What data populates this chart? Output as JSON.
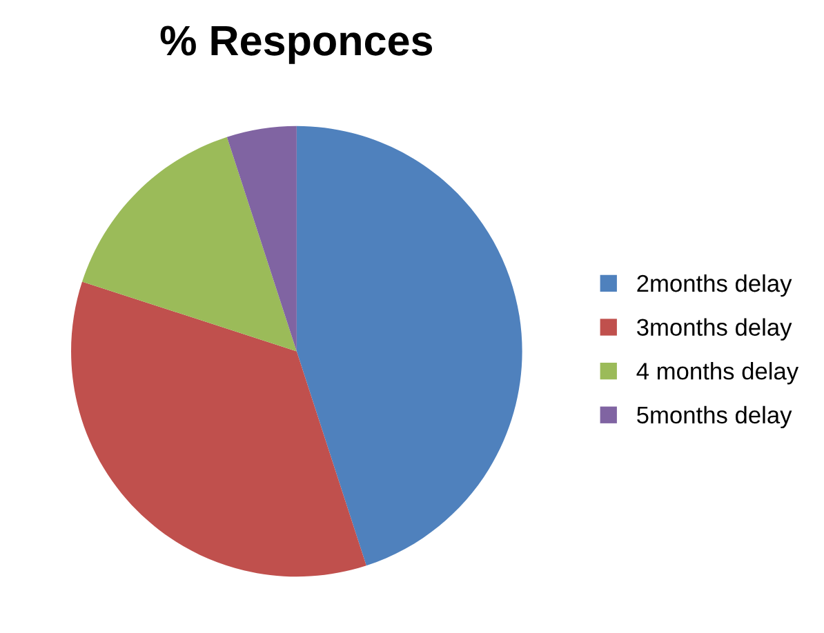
{
  "chart_data": {
    "type": "pie",
    "title": "% Responces",
    "categories": [
      "2months delay",
      "3months delay",
      "4 months delay",
      "5months delay"
    ],
    "values": [
      45,
      35,
      15,
      5
    ],
    "colors": [
      "#4f81bd",
      "#c0504d",
      "#9bbb59",
      "#8064a2"
    ],
    "legend": "right"
  }
}
